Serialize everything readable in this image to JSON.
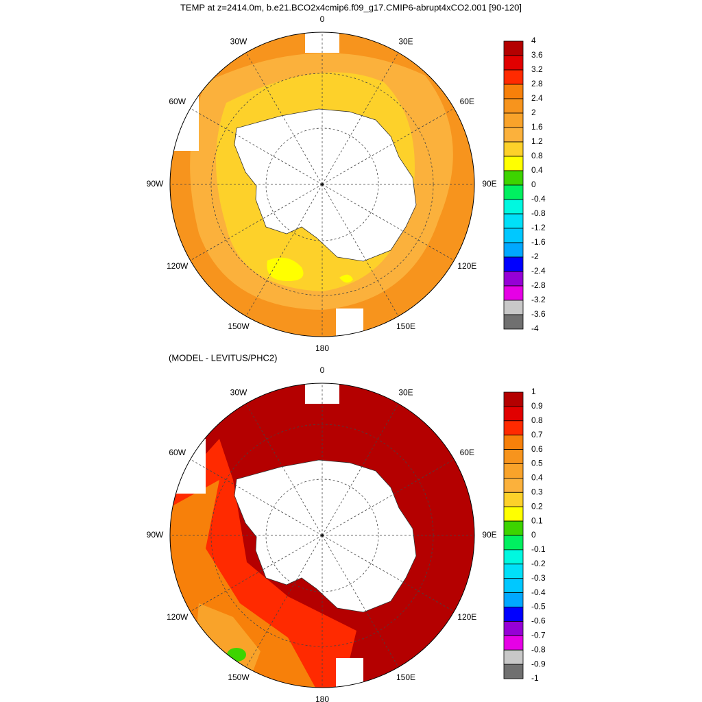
{
  "title": "TEMP at z=2414.0m, b.e21.BCO2x4cmip6.f09_g17.CMIP6-abrupt4xCO2.001 [90-120]",
  "colorbar_colors": [
    "#b40000",
    "#e10000",
    "#ff2a00",
    "#f7800a",
    "#f7941d",
    "#f9a32a",
    "#fbb13c",
    "#fdd12a",
    "#ffff00",
    "#3dd400",
    "#00f060",
    "#00f8e0",
    "#00e0f8",
    "#00c8ff",
    "#00a8ff",
    "#0000ff",
    "#9600d6",
    "#e600e6",
    "#c8c8c8",
    "#707070"
  ],
  "panels": [
    {
      "lon_labels": [
        "0",
        "30E",
        "60E",
        "90E",
        "120E",
        "150E",
        "180",
        "150W",
        "120W",
        "90W",
        "60W",
        "30W"
      ],
      "colorbar": {
        "labels": [
          4,
          3.6,
          3.2,
          2.8,
          2.4,
          2,
          1.6,
          1.2,
          0.8,
          0.4,
          0,
          -0.4,
          -0.8,
          -1.2,
          -1.6,
          -2,
          -2.4,
          -2.8,
          -3.2,
          -3.6,
          -4
        ]
      }
    },
    {
      "subtitle": "(MODEL - LEVITUS/PHC2)",
      "lon_labels": [
        "0",
        "30E",
        "60E",
        "90E",
        "120E",
        "150E",
        "180",
        "150W",
        "120W",
        "90W",
        "60W",
        "30W"
      ],
      "colorbar": {
        "labels": [
          1,
          0.9,
          0.8,
          0.7,
          0.6,
          0.5,
          0.4,
          0.3,
          0.2,
          0.1,
          0,
          -0.1,
          -0.2,
          -0.3,
          -0.4,
          -0.5,
          -0.6,
          -0.7,
          -0.8,
          -0.9,
          -1
        ]
      }
    }
  ]
}
